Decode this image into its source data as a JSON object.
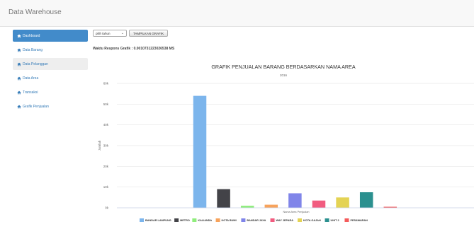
{
  "app": {
    "title": "Data Warehouse"
  },
  "sidebar": {
    "items": [
      {
        "label": "Dashboard",
        "icon": "home-icon",
        "state": "active"
      },
      {
        "label": "Data Barang",
        "icon": "home-icon",
        "state": "normal"
      },
      {
        "label": "Data Pelanggan",
        "icon": "home-icon",
        "state": "hover"
      },
      {
        "label": "Data Area",
        "icon": "home-icon",
        "state": "normal"
      },
      {
        "label": "Transaksi",
        "icon": "home-icon",
        "state": "normal"
      },
      {
        "label": "Grafik Penjualan",
        "icon": "home-icon",
        "state": "normal"
      }
    ]
  },
  "controls": {
    "year_select": {
      "value": "pilih tahun"
    },
    "show_button": "TAMPILKAN GRAFIK"
  },
  "response_time": "Waktu Respons Grafik : 0.0010731223026538 MS",
  "chart_data": {
    "type": "bar",
    "title": "GRAFIK PENJUALAN BARANG BERDASARKAN NAMA AREA",
    "subtitle": "2016",
    "xlabel": "Nama Area Penjualan",
    "ylabel": "Jumlah",
    "ylim": [
      0,
      60000
    ],
    "yticks": [
      "0k",
      "10k",
      "20k",
      "30k",
      "40k",
      "50k",
      "60k"
    ],
    "grid": true,
    "legend_position": "bottom",
    "series": [
      {
        "name": "BANDAR LAMPUNG",
        "value": 54000,
        "color": "#7cb5ec"
      },
      {
        "name": "METRO",
        "value": 9000,
        "color": "#434348"
      },
      {
        "name": "KALIANDA",
        "value": 1000,
        "color": "#90ed7d"
      },
      {
        "name": "KOTA BUMI",
        "value": 1500,
        "color": "#f7a35c"
      },
      {
        "name": "BANDAR JAYA",
        "value": 7000,
        "color": "#8085e9"
      },
      {
        "name": "WAY JEPARA",
        "value": 3500,
        "color": "#f15c80"
      },
      {
        "name": "KOTA GAJAH",
        "value": 5000,
        "color": "#e4d354"
      },
      {
        "name": "UNIT 2",
        "value": 7500,
        "color": "#2b908f"
      },
      {
        "name": "PESAWARAN",
        "value": 500,
        "color": "#f45b5b"
      }
    ]
  }
}
